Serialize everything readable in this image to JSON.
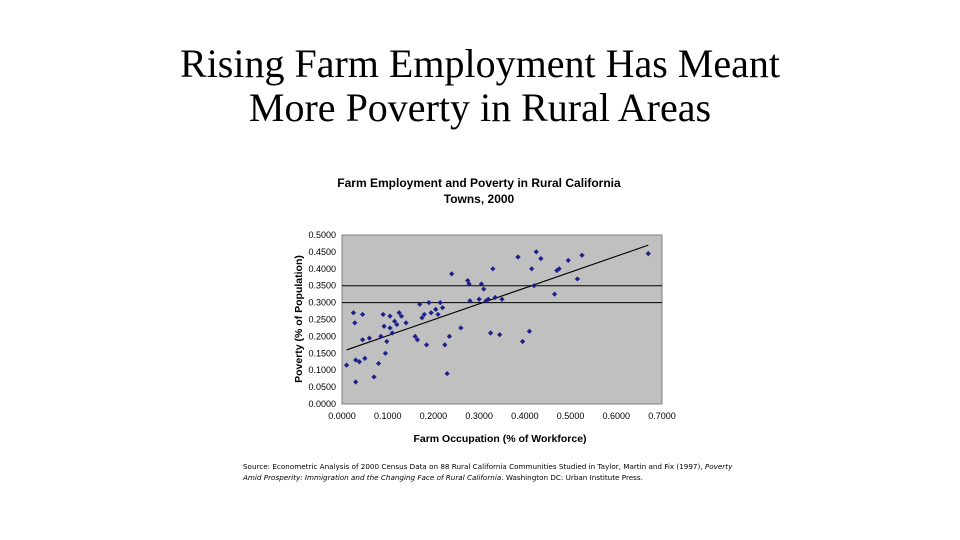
{
  "slide": {
    "title_line1": "Rising Farm Employment Has Meant",
    "title_line2": "More Poverty in Rural Areas"
  },
  "source": {
    "line1_prefix": "Source: Econometric Analysis of 2000 Census Data on 88 Rural California Communities Studied in Taylor, Martin and Fix (1997), ",
    "line1_italic": "Poverty",
    "line2_italic": "Amid Prosperity: Immigration and the Changing Face of Rural California",
    "line2_suffix": ". Washington DC: Urban Institute Press."
  },
  "chart_data": {
    "type": "scatter",
    "title_line1": "Farm Employment and Poverty in Rural California",
    "title_line2": "Towns, 2000",
    "xlabel": "Farm Occupation (% of Workforce)",
    "ylabel": "Poverty (% of Population)",
    "xlim": [
      0,
      0.7
    ],
    "ylim": [
      0,
      0.5
    ],
    "xticks": [
      "0.0000",
      "0.1000",
      "0.2000",
      "0.3000",
      "0.4000",
      "0.5000",
      "0.6000",
      "0.7000"
    ],
    "yticks": [
      "0.0000",
      "0.0500",
      "0.1000",
      "0.1500",
      "0.2000",
      "0.2500",
      "0.3000",
      "0.3500",
      "0.4000",
      "0.4500",
      "0.5000"
    ],
    "gridlines_y": [
      0.3,
      0.35
    ],
    "plot_background": "#c0c0c0",
    "marker_color": "#1f1f8a",
    "trendline": {
      "x": [
        0.01,
        0.67
      ],
      "y": [
        0.16,
        0.47
      ]
    },
    "points": [
      {
        "x": 0.01,
        "y": 0.115
      },
      {
        "x": 0.025,
        "y": 0.27
      },
      {
        "x": 0.028,
        "y": 0.24
      },
      {
        "x": 0.03,
        "y": 0.13
      },
      {
        "x": 0.03,
        "y": 0.065
      },
      {
        "x": 0.038,
        "y": 0.125
      },
      {
        "x": 0.045,
        "y": 0.265
      },
      {
        "x": 0.045,
        "y": 0.19
      },
      {
        "x": 0.05,
        "y": 0.135
      },
      {
        "x": 0.06,
        "y": 0.195
      },
      {
        "x": 0.07,
        "y": 0.08
      },
      {
        "x": 0.08,
        "y": 0.12
      },
      {
        "x": 0.085,
        "y": 0.2
      },
      {
        "x": 0.09,
        "y": 0.265
      },
      {
        "x": 0.092,
        "y": 0.23
      },
      {
        "x": 0.095,
        "y": 0.15
      },
      {
        "x": 0.098,
        "y": 0.185
      },
      {
        "x": 0.105,
        "y": 0.26
      },
      {
        "x": 0.105,
        "y": 0.225
      },
      {
        "x": 0.11,
        "y": 0.21
      },
      {
        "x": 0.115,
        "y": 0.245
      },
      {
        "x": 0.12,
        "y": 0.235
      },
      {
        "x": 0.125,
        "y": 0.27
      },
      {
        "x": 0.13,
        "y": 0.26
      },
      {
        "x": 0.14,
        "y": 0.24
      },
      {
        "x": 0.16,
        "y": 0.2
      },
      {
        "x": 0.165,
        "y": 0.19
      },
      {
        "x": 0.17,
        "y": 0.295
      },
      {
        "x": 0.175,
        "y": 0.255
      },
      {
        "x": 0.18,
        "y": 0.265
      },
      {
        "x": 0.185,
        "y": 0.175
      },
      {
        "x": 0.19,
        "y": 0.3
      },
      {
        "x": 0.195,
        "y": 0.27
      },
      {
        "x": 0.205,
        "y": 0.28
      },
      {
        "x": 0.21,
        "y": 0.265
      },
      {
        "x": 0.215,
        "y": 0.3
      },
      {
        "x": 0.22,
        "y": 0.285
      },
      {
        "x": 0.225,
        "y": 0.175
      },
      {
        "x": 0.23,
        "y": 0.09
      },
      {
        "x": 0.235,
        "y": 0.2
      },
      {
        "x": 0.24,
        "y": 0.385
      },
      {
        "x": 0.26,
        "y": 0.225
      },
      {
        "x": 0.275,
        "y": 0.365
      },
      {
        "x": 0.278,
        "y": 0.355
      },
      {
        "x": 0.28,
        "y": 0.305
      },
      {
        "x": 0.3,
        "y": 0.31
      },
      {
        "x": 0.305,
        "y": 0.355
      },
      {
        "x": 0.31,
        "y": 0.34
      },
      {
        "x": 0.315,
        "y": 0.305
      },
      {
        "x": 0.32,
        "y": 0.31
      },
      {
        "x": 0.325,
        "y": 0.21
      },
      {
        "x": 0.33,
        "y": 0.4
      },
      {
        "x": 0.335,
        "y": 0.315
      },
      {
        "x": 0.345,
        "y": 0.205
      },
      {
        "x": 0.35,
        "y": 0.31
      },
      {
        "x": 0.385,
        "y": 0.435
      },
      {
        "x": 0.395,
        "y": 0.185
      },
      {
        "x": 0.41,
        "y": 0.215
      },
      {
        "x": 0.415,
        "y": 0.4
      },
      {
        "x": 0.42,
        "y": 0.35
      },
      {
        "x": 0.425,
        "y": 0.45
      },
      {
        "x": 0.435,
        "y": 0.43
      },
      {
        "x": 0.465,
        "y": 0.325
      },
      {
        "x": 0.47,
        "y": 0.395
      },
      {
        "x": 0.475,
        "y": 0.4
      },
      {
        "x": 0.495,
        "y": 0.425
      },
      {
        "x": 0.515,
        "y": 0.37
      },
      {
        "x": 0.525,
        "y": 0.44
      },
      {
        "x": 0.67,
        "y": 0.445
      }
    ]
  }
}
